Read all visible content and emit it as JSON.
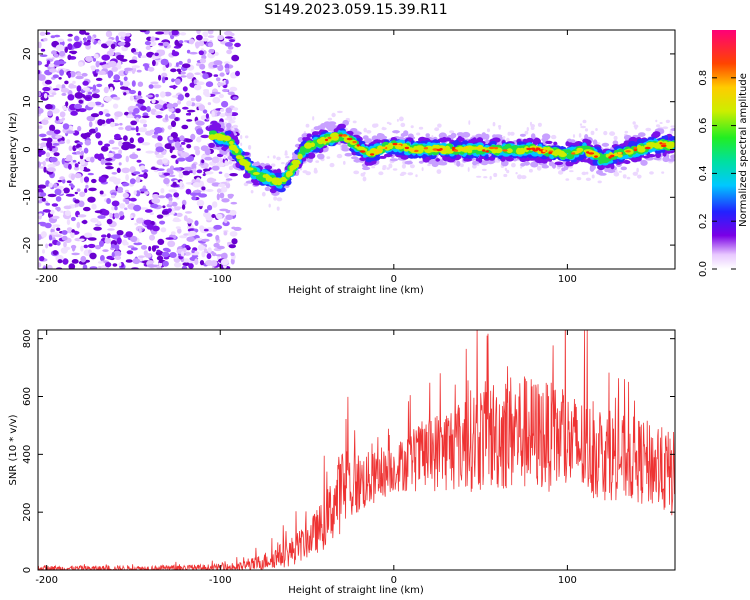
{
  "title": "S149.2023.059.15.39.R11",
  "colors": {
    "snr_line": "#ee3333",
    "axis": "#000000",
    "background": "#ffffff"
  },
  "chart_data": [
    {
      "type": "heatmap",
      "xlabel": "Height of straight line (km)",
      "ylabel": "Frequency (Hz)",
      "xlim": [
        -205,
        162
      ],
      "ylim": [
        -25,
        25
      ],
      "xticks": [
        -200,
        -100,
        0,
        100
      ],
      "yticks": [
        -20,
        -10,
        0,
        10,
        20
      ],
      "colorbar": {
        "label": "Normalized spectral amplitude",
        "range": [
          0.0,
          1.0
        ],
        "ticks": [
          0.0,
          0.2,
          0.4,
          0.6,
          0.8
        ],
        "tick_labels": [
          "0.0",
          "0.2",
          "0.4",
          "0.6",
          "0.8"
        ],
        "colormap": "white-purple-blue-cyan-green-yellow-red-magenta"
      },
      "ridge": {
        "description": "frequency of peak spectral amplitude vs height",
        "x": [
          -105,
          -95,
          -88,
          -80,
          -72,
          -65,
          -58,
          -52,
          -47,
          -40,
          -30,
          -22,
          -15,
          -8,
          0,
          10,
          20,
          40,
          60,
          80,
          100,
          110,
          120,
          130,
          140,
          150,
          160
        ],
        "y": [
          3,
          2,
          -2,
          -5,
          -6,
          -7,
          -4,
          0,
          1,
          2,
          3,
          1,
          -1,
          0,
          1,
          0,
          0,
          0,
          0,
          0,
          -1,
          0,
          -2,
          -1,
          0,
          1,
          1
        ]
      },
      "noise_region": {
        "x_range": [
          -205,
          -90
        ],
        "y_range": [
          -25,
          25
        ]
      }
    },
    {
      "type": "line",
      "xlabel": "Height of straight line (km)",
      "ylabel": "SNR (10 * v/v)",
      "xlim": [
        -205,
        162
      ],
      "ylim": [
        0,
        830
      ],
      "xticks": [
        -200,
        -100,
        0,
        100
      ],
      "yticks": [
        0,
        200,
        400,
        600,
        800
      ],
      "series": [
        {
          "envelope_x": [
            -205,
            -150,
            -100,
            -90,
            -80,
            -70,
            -60,
            -50,
            -40,
            -35,
            -30,
            -20,
            -10,
            0,
            10,
            20,
            30,
            40,
            50,
            60,
            70,
            80,
            90,
            100,
            110,
            120,
            130,
            140,
            150,
            160
          ],
          "envelope_y": [
            5,
            5,
            8,
            10,
            20,
            40,
            60,
            100,
            160,
            220,
            280,
            300,
            320,
            350,
            380,
            400,
            420,
            440,
            460,
            470,
            480,
            470,
            460,
            440,
            420,
            400,
            390,
            380,
            360,
            330
          ],
          "spread": [
            10,
            10,
            12,
            15,
            25,
            35,
            50,
            60,
            90,
            120,
            150,
            110,
            90,
            80,
            110,
            130,
            150,
            170,
            190,
            200,
            210,
            200,
            190,
            180,
            170,
            160,
            150,
            150,
            150,
            150
          ]
        }
      ]
    }
  ]
}
